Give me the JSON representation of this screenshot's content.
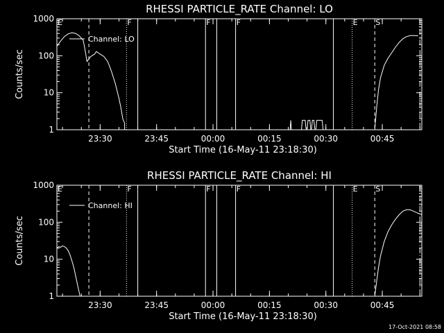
{
  "footer_timestamp": "17-Oct-2021 08:58",
  "chart_data": [
    {
      "type": "line",
      "title": "RHESSI PARTICLE_RATE Channel: LO",
      "xlabel": "Start Time (16-May-11 23:18:30)",
      "ylabel": "Counts/sec",
      "y_scale": "log",
      "ylim": [
        1,
        1000
      ],
      "xlim": [
        "23:18:30",
        "00:55:30"
      ],
      "x_ticks": [
        "23:30",
        "23:45",
        "00:00",
        "00:15",
        "00:30",
        "00:45"
      ],
      "y_ticks": [
        "1",
        "10",
        "100",
        "1000"
      ],
      "legend": "Channel: LO",
      "series": [
        {
          "name": "Channel: LO",
          "segments": [
            [
              [
                "23:18:30",
                180
              ],
              [
                "23:19:30",
                250
              ],
              [
                "23:20:30",
                330
              ],
              [
                "23:21:30",
                390
              ],
              [
                "23:22:30",
                420
              ],
              [
                "23:23:30",
                400
              ],
              [
                "23:24:30",
                340
              ],
              [
                "23:25:30",
                260
              ],
              [
                "23:26:00",
                140
              ],
              [
                "23:26:30",
                70
              ],
              [
                "23:27:30",
                95
              ],
              [
                "23:28:30",
                110
              ],
              [
                "23:29:00",
                130
              ],
              [
                "23:30:00",
                110
              ],
              [
                "23:31:00",
                95
              ],
              [
                "23:32:00",
                70
              ],
              [
                "23:33:00",
                38
              ],
              [
                "23:34:00",
                18
              ],
              [
                "23:35:00",
                7
              ],
              [
                "23:35:30",
                4
              ],
              [
                "23:36:00",
                2
              ],
              [
                "23:36:30",
                1.5
              ],
              [
                "23:36:30",
                1
              ]
            ],
            [
              [
                "00:20:30",
                1
              ],
              [
                "00:20:40",
                1.8
              ],
              [
                "00:20:50",
                1
              ]
            ],
            [
              [
                "00:23:30",
                1
              ],
              [
                "00:23:45",
                1.8
              ],
              [
                "00:24:30",
                1.8
              ],
              [
                "00:24:45",
                1
              ]
            ],
            [
              [
                "00:25:00",
                1
              ],
              [
                "00:25:15",
                1.8
              ],
              [
                "00:25:45",
                1.8
              ],
              [
                "00:26:00",
                1
              ]
            ],
            [
              [
                "00:26:10",
                1
              ],
              [
                "00:26:25",
                1.8
              ],
              [
                "00:26:50",
                1.8
              ],
              [
                "00:27:05",
                1
              ]
            ],
            [
              [
                "00:27:20",
                1
              ],
              [
                "00:27:35",
                1.8
              ],
              [
                "00:29:00",
                1.8
              ],
              [
                "00:29:15",
                1
              ]
            ],
            [
              [
                "00:43:00",
                1
              ],
              [
                "00:43:30",
                4
              ],
              [
                "00:44:00",
                12
              ],
              [
                "00:44:30",
                25
              ],
              [
                "00:45:30",
                55
              ],
              [
                "00:46:30",
                85
              ],
              [
                "00:47:30",
                120
              ],
              [
                "00:48:30",
                170
              ],
              [
                "00:49:30",
                230
              ],
              [
                "00:50:30",
                290
              ],
              [
                "00:51:30",
                330
              ],
              [
                "00:52:30",
                350
              ],
              [
                "00:53:30",
                350
              ],
              [
                "00:54:30",
                345
              ]
            ]
          ]
        }
      ],
      "event_lines": [
        {
          "label": "E",
          "time": "23:18:30",
          "style": "solid"
        },
        {
          "label": "",
          "time": "23:27:00",
          "style": "dashed"
        },
        {
          "label": "F",
          "time": "23:37:00",
          "style": "dotted"
        },
        {
          "label": "",
          "time": "23:40:00",
          "style": "solid"
        },
        {
          "label": "F",
          "time": "23:58:00",
          "style": "solid"
        },
        {
          "label": "",
          "time": "00:01:00",
          "style": "solid"
        },
        {
          "label": "F",
          "time": "00:06:00",
          "style": "solid"
        },
        {
          "label": "",
          "time": "00:32:00",
          "style": "solid"
        },
        {
          "label": "E",
          "time": "00:37:00",
          "style": "dotted"
        },
        {
          "label": "S",
          "time": "00:43:00",
          "style": "dashed"
        },
        {
          "label": "",
          "time": "00:55:00",
          "style": "dashdot"
        }
      ]
    },
    {
      "type": "line",
      "title": "RHESSI PARTICLE_RATE Channel: HI",
      "xlabel": "Start Time (16-May-11 23:18:30)",
      "ylabel": "Counts/sec",
      "y_scale": "log",
      "ylim": [
        1,
        1000
      ],
      "xlim": [
        "23:18:30",
        "00:55:30"
      ],
      "x_ticks": [
        "23:30",
        "23:45",
        "00:00",
        "00:15",
        "00:30",
        "00:45"
      ],
      "y_ticks": [
        "1",
        "10",
        "100",
        "1000"
      ],
      "legend": "Channel: HI",
      "series": [
        {
          "name": "Channel: HI",
          "segments": [
            [
              [
                "23:18:30",
                20
              ],
              [
                "23:19:00",
                22
              ],
              [
                "23:19:30",
                21
              ],
              [
                "23:20:00",
                23
              ],
              [
                "23:20:30",
                22
              ],
              [
                "23:21:00",
                20
              ],
              [
                "23:21:30",
                17
              ],
              [
                "23:22:00",
                13
              ],
              [
                "23:22:30",
                9
              ],
              [
                "23:23:00",
                6
              ],
              [
                "23:23:30",
                3.5
              ],
              [
                "23:24:00",
                2
              ],
              [
                "23:24:30",
                1.2
              ],
              [
                "23:24:40",
                1
              ]
            ],
            [
              [
                "00:43:00",
                1
              ],
              [
                "00:43:30",
                2.5
              ],
              [
                "00:44:00",
                6
              ],
              [
                "00:44:30",
                12
              ],
              [
                "00:45:30",
                30
              ],
              [
                "00:46:30",
                55
              ],
              [
                "00:47:30",
                85
              ],
              [
                "00:48:30",
                120
              ],
              [
                "00:49:30",
                160
              ],
              [
                "00:50:30",
                200
              ],
              [
                "00:51:30",
                220
              ],
              [
                "00:52:30",
                215
              ],
              [
                "00:53:30",
                195
              ],
              [
                "00:54:30",
                175
              ],
              [
                "00:55:30",
                160
              ]
            ]
          ]
        }
      ],
      "event_lines": [
        {
          "label": "E",
          "time": "23:18:30",
          "style": "solid"
        },
        {
          "label": "",
          "time": "23:27:00",
          "style": "dashed"
        },
        {
          "label": "F",
          "time": "23:37:00",
          "style": "dotted"
        },
        {
          "label": "",
          "time": "23:40:00",
          "style": "solid"
        },
        {
          "label": "F",
          "time": "23:58:00",
          "style": "solid"
        },
        {
          "label": "",
          "time": "00:01:00",
          "style": "solid"
        },
        {
          "label": "F",
          "time": "00:06:00",
          "style": "solid"
        },
        {
          "label": "",
          "time": "00:32:00",
          "style": "solid"
        },
        {
          "label": "E",
          "time": "00:37:00",
          "style": "dotted"
        },
        {
          "label": "S",
          "time": "00:43:00",
          "style": "dashed"
        },
        {
          "label": "",
          "time": "00:55:00",
          "style": "dashdot"
        }
      ]
    }
  ]
}
